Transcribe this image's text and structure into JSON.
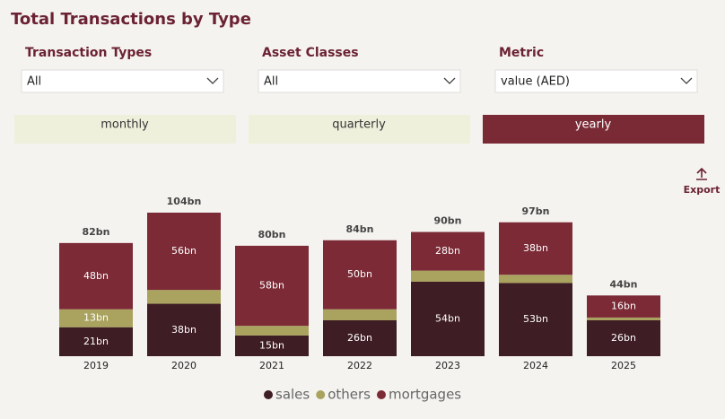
{
  "header": {
    "title": "Total Transactions by Type"
  },
  "filters": [
    {
      "label": "Transaction Types",
      "value": "All"
    },
    {
      "label": "Asset Classes",
      "value": "All"
    },
    {
      "label": "Metric",
      "value": "value (AED)"
    }
  ],
  "buttons": [
    "monthly",
    "quarterly",
    "yearly"
  ],
  "export": "Export",
  "chart_data": {
    "type": "bar",
    "stacked": true,
    "categories": [
      "2019",
      "2020",
      "2021",
      "2022",
      "2023",
      "2024",
      "2025"
    ],
    "series": [
      {
        "name": "sales",
        "color": "#3f1d24",
        "values": [
          21,
          38,
          15,
          26,
          54,
          53,
          26
        ],
        "value_labels": [
          "21bn",
          "38bn",
          "15bn",
          "26bn",
          "54bn",
          "53bn",
          "26bn"
        ]
      },
      {
        "name": "others",
        "color": "#aaa35f",
        "values": [
          13,
          10,
          7,
          8,
          8,
          6,
          2
        ],
        "value_labels": [
          "13bn",
          null,
          null,
          null,
          null,
          null,
          null
        ]
      },
      {
        "name": "mortgages",
        "color": "#7b2a36",
        "values": [
          48,
          56,
          58,
          50,
          28,
          38,
          16
        ],
        "value_labels": [
          "48bn",
          "56bn",
          "58bn",
          "50bn",
          "28bn",
          "38bn",
          "16bn"
        ]
      }
    ],
    "totals": {
      "values": [
        82,
        104,
        80,
        84,
        90,
        97,
        44
      ],
      "value_labels": [
        "82bn",
        "104bn",
        "80bn",
        "84bn",
        "90bn",
        "97bn",
        "44bn"
      ]
    },
    "legend": "bottom"
  }
}
